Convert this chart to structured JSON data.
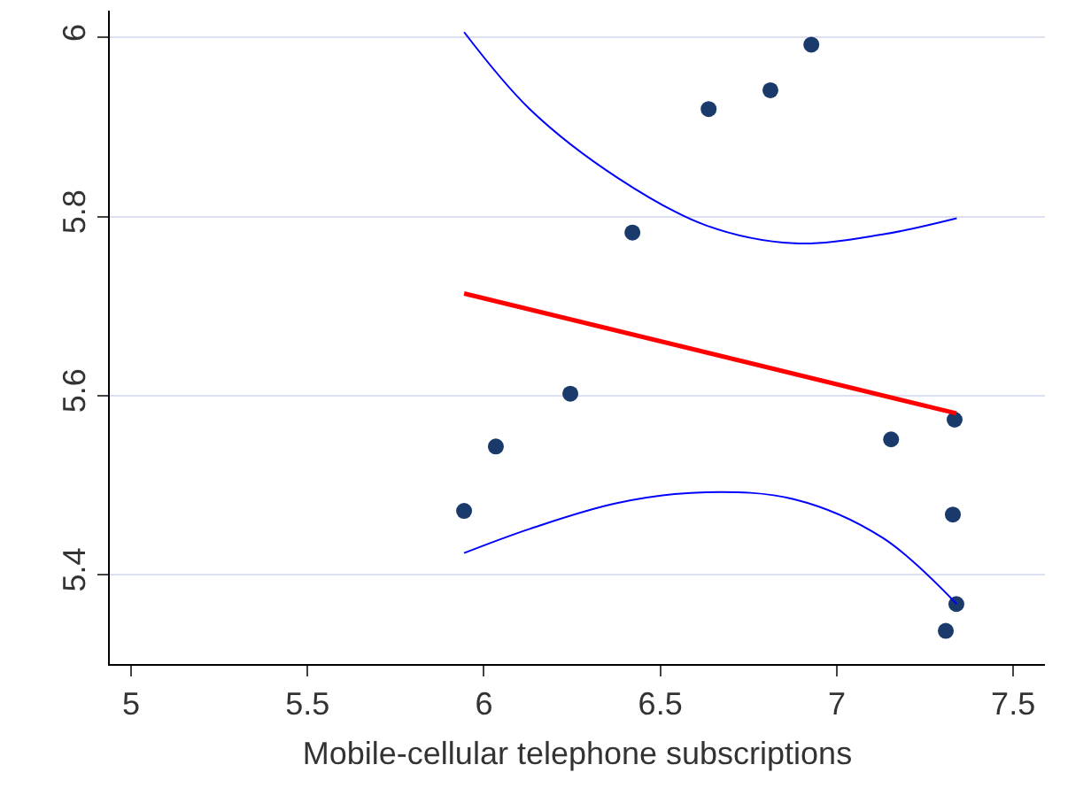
{
  "chart_data": {
    "type": "scatter",
    "xlabel": "Mobile-cellular telephone subscriptions",
    "xlim": [
      4.94,
      7.59
    ],
    "ylim": [
      5.3,
      6.03
    ],
    "xticks": [
      5,
      5.5,
      6,
      6.5,
      7,
      7.5
    ],
    "yticks": [
      5.4,
      5.6,
      5.8,
      6
    ],
    "grid": "y",
    "series": [
      {
        "marker": "circle",
        "color": "#1a3a6b",
        "x": [
          6.928,
          6.812,
          6.637,
          6.421,
          6.245,
          6.034,
          5.944,
          7.154,
          7.334,
          7.329,
          7.339,
          7.309
        ],
        "values": [
          5.992,
          5.941,
          5.92,
          5.782,
          5.602,
          5.543,
          5.471,
          5.551,
          5.573,
          5.467,
          5.367,
          5.337
        ]
      },
      {
        "type": "line",
        "color": "#ff0000",
        "x": [
          5.944,
          7.339
        ],
        "values": [
          5.714,
          5.58
        ]
      },
      {
        "type": "line",
        "color": "#0000ff",
        "x": [
          5.944,
          6.13,
          6.38,
          6.63,
          6.88,
          7.13,
          7.34
        ],
        "values": [
          6.006,
          5.92,
          5.843,
          5.79,
          5.77,
          5.78,
          5.798
        ]
      },
      {
        "type": "line",
        "color": "#0000ff",
        "x": [
          5.944,
          6.13,
          6.38,
          6.63,
          6.88,
          7.13,
          7.34
        ],
        "values": [
          5.424,
          5.451,
          5.48,
          5.492,
          5.484,
          5.441,
          5.367
        ]
      }
    ]
  }
}
